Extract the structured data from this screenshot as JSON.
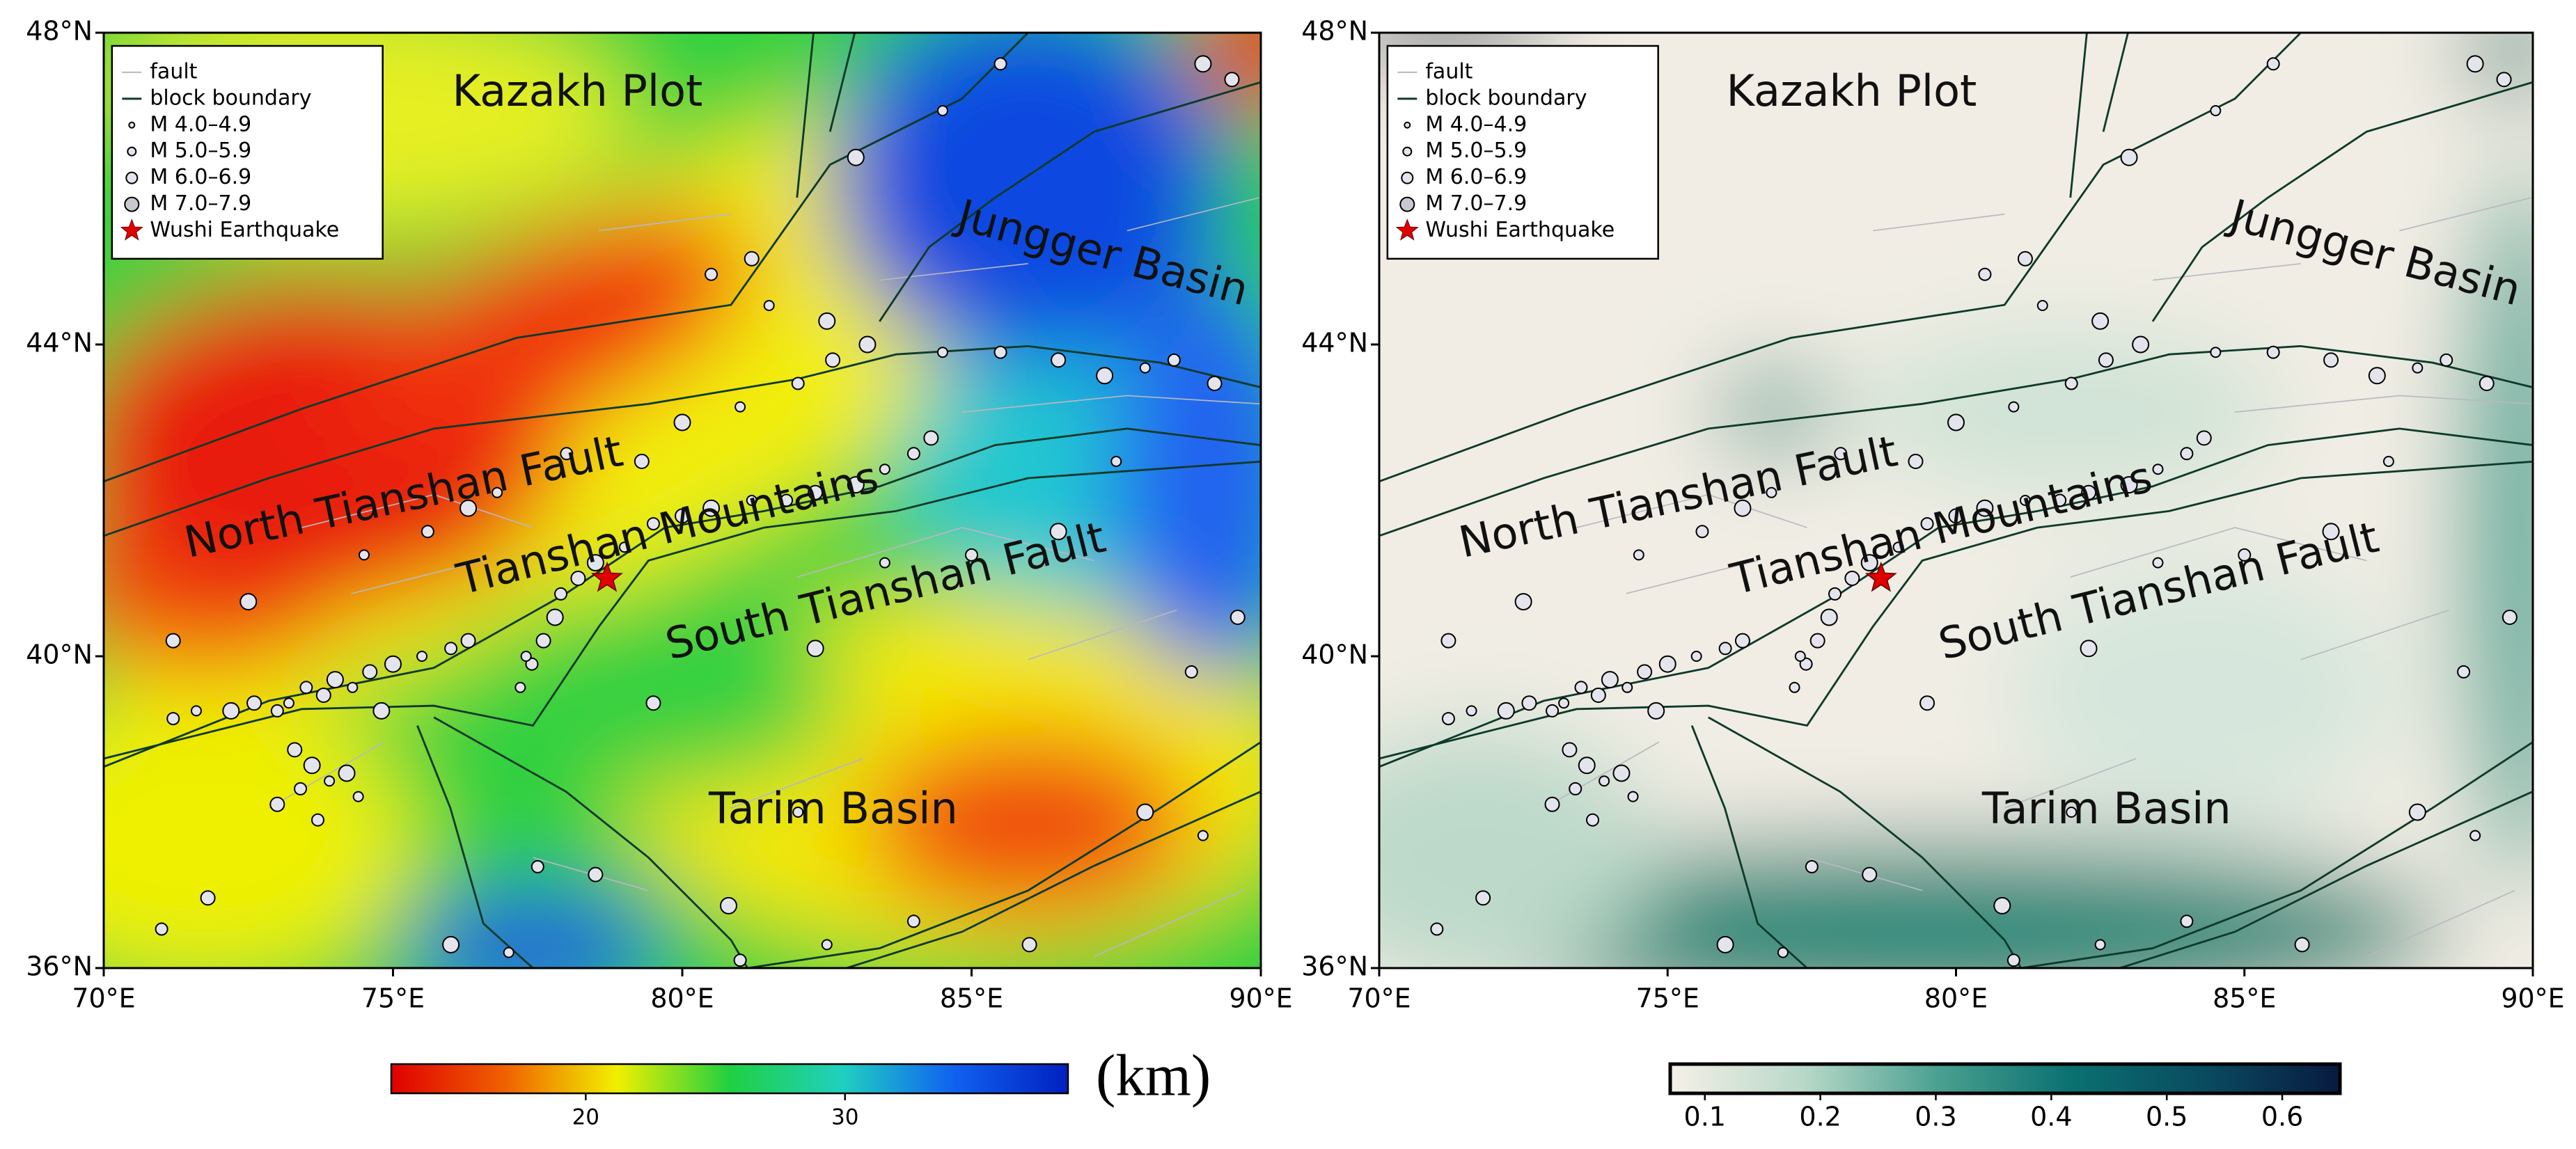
{
  "panels": [
    {
      "xlim": [
        70,
        90
      ],
      "ylim": [
        36,
        48
      ],
      "xticks": [
        {
          "value": 70,
          "label": "70°E"
        },
        {
          "value": 75,
          "label": "75°E"
        },
        {
          "value": 80,
          "label": "80°E"
        },
        {
          "value": 85,
          "label": "85°E"
        },
        {
          "value": 90,
          "label": "90°E"
        }
      ],
      "yticks": [
        {
          "value": 36,
          "label": "36°N"
        },
        {
          "value": 40,
          "label": "40°N"
        },
        {
          "value": 44,
          "label": "44°N"
        },
        {
          "value": 48,
          "label": "48°N"
        }
      ],
      "annotations": [
        "Kazakh Plot",
        "Jungger Basin",
        "North Tianshan Fault",
        "Tianshan Mountains",
        "South Tianshan Fault",
        "Tarim Basin"
      ],
      "legend": [
        "fault",
        "block boundary",
        "M 4.0–4.9",
        "M 5.0–5.9",
        "M 6.0–6.9",
        "M 7.0–7.9",
        "Wushi Earthquake"
      ],
      "colorbar": {
        "lim": [
          12.5,
          38.6
        ],
        "ticks": [
          20,
          30
        ],
        "unit": "(km)",
        "colors": [
          "#e00000",
          "#f06000",
          "#f0f000",
          "#20d040",
          "#20d0c0",
          "#1060f0",
          "#0020c0"
        ]
      }
    },
    {
      "xlim": [
        70,
        90
      ],
      "ylim": [
        36,
        48
      ],
      "xticks": [
        {
          "value": 70,
          "label": "70°E"
        },
        {
          "value": 75,
          "label": "75°E"
        },
        {
          "value": 80,
          "label": "80°E"
        },
        {
          "value": 85,
          "label": "85°E"
        },
        {
          "value": 90,
          "label": "90°E"
        }
      ],
      "yticks": [
        {
          "value": 36,
          "label": "36°N"
        },
        {
          "value": 40,
          "label": "40°N"
        },
        {
          "value": 44,
          "label": "44°N"
        },
        {
          "value": 48,
          "label": "48°N"
        }
      ],
      "annotations": [
        "Kazakh Plot",
        "Jungger Basin",
        "North Tianshan Fault",
        "Tianshan Mountains",
        "South Tianshan Fault",
        "Tarim Basin"
      ],
      "legend": [
        "fault",
        "block boundary",
        "M 4.0–4.9",
        "M 5.0–5.9",
        "M 6.0–6.9",
        "M 7.0–7.9",
        "Wushi Earthquake"
      ],
      "colorbar": {
        "lim": [
          0.07,
          0.65
        ],
        "ticks": [
          0.1,
          0.2,
          0.3,
          0.4,
          0.5,
          0.6
        ],
        "colors": [
          "#f5f0e8",
          "#b8d8c8",
          "#4aa090",
          "#0a7070",
          "#0a4a60",
          "#081a40"
        ]
      }
    }
  ],
  "earthquakes": {
    "lon": [
      73.2,
      73.5,
      73.8,
      74.0,
      74.3,
      73.0,
      72.6,
      72.2,
      71.6,
      71.2,
      73.3,
      73.6,
      73.9,
      73.4,
      73.0,
      74.2,
      74.4,
      73.7,
      74.6,
      75.0,
      75.5,
      76.0,
      76.3,
      74.8,
      77.2,
      77.4,
      77.6,
      77.8,
      77.3,
      77.9,
      78.2,
      78.5,
      79.0,
      79.5,
      80.0,
      80.5,
      81.2,
      81.8,
      82.3,
      83.0,
      83.5,
      84.0,
      84.3,
      76.3,
      76.8,
      78.0,
      79.3,
      80.0,
      81.0,
      82.0,
      82.6,
      83.2,
      84.5,
      85.5,
      86.5,
      87.3,
      88.0,
      88.5,
      89.2,
      82.5,
      81.5,
      80.5,
      81.2,
      83.0,
      84.5,
      85.5,
      89.5,
      89.0,
      82.0,
      77.5,
      78.5,
      80.8,
      82.5,
      84.0,
      86.0,
      88.0,
      89.0,
      88.8,
      89.6,
      86.5,
      87.5,
      71.0,
      71.8,
      76.0,
      77.0,
      81.0,
      79.5,
      82.3,
      83.5,
      85.0,
      71.2,
      72.5,
      74.5,
      75.6
    ],
    "lat": [
      39.4,
      39.6,
      39.5,
      39.7,
      39.6,
      39.3,
      39.4,
      39.3,
      39.3,
      39.2,
      38.8,
      38.6,
      38.4,
      38.3,
      38.1,
      38.5,
      38.2,
      37.9,
      39.8,
      39.9,
      40.0,
      40.1,
      40.2,
      39.3,
      39.6,
      39.9,
      40.2,
      40.5,
      40.0,
      40.8,
      41.0,
      41.2,
      41.4,
      41.7,
      41.8,
      41.9,
      42.0,
      42.0,
      42.1,
      42.2,
      42.4,
      42.6,
      42.8,
      41.9,
      42.1,
      42.6,
      42.5,
      43.0,
      43.2,
      43.5,
      43.8,
      44.0,
      43.9,
      43.9,
      43.8,
      43.6,
      43.7,
      43.8,
      43.5,
      44.3,
      44.5,
      44.9,
      45.1,
      46.4,
      47.0,
      47.6,
      47.4,
      47.6,
      38.0,
      37.3,
      37.2,
      36.8,
      36.3,
      36.6,
      36.3,
      38.0,
      37.7,
      39.8,
      40.5,
      41.6,
      42.5,
      36.5,
      36.9,
      36.3,
      36.2,
      36.1,
      39.4,
      40.1,
      41.2,
      41.3,
      40.2,
      40.7,
      41.3,
      41.6
    ]
  },
  "mainshock": {
    "lon": 78.7,
    "lat": 41.0
  }
}
